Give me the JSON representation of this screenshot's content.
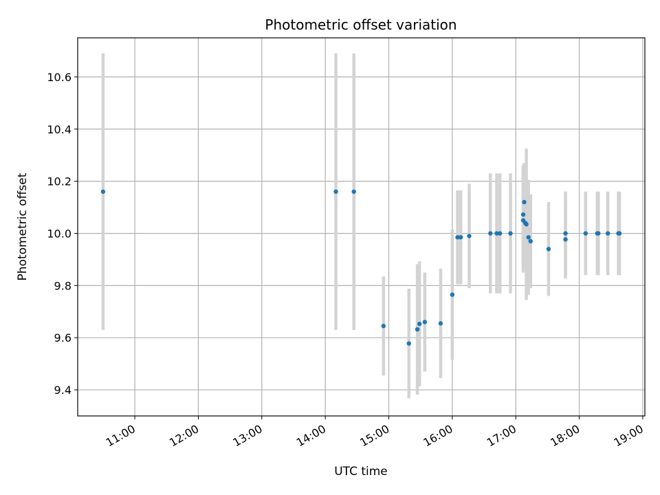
{
  "chart_data": {
    "type": "scatter",
    "title": "Photometric offset variation",
    "xlabel": "UTC time",
    "ylabel": "Photometric offset",
    "xlim": [
      "10:06",
      "19:02"
    ],
    "ylim": [
      9.3,
      10.75
    ],
    "grid": true,
    "x_ticks": [
      "11:00",
      "12:00",
      "13:00",
      "14:00",
      "15:00",
      "16:00",
      "17:00",
      "18:00",
      "19:00"
    ],
    "y_ticks": [
      "9.4",
      "9.6",
      "9.8",
      "10.0",
      "10.2",
      "10.4",
      "10.6"
    ],
    "colors": {
      "points": "#1f77b4",
      "error_bars": "#d3d3d3",
      "grid": "#b0b0b0"
    },
    "points": [
      {
        "x": "10:30",
        "y": 10.16,
        "err": 0.53
      },
      {
        "x": "14:10",
        "y": 10.16,
        "err": 0.53
      },
      {
        "x": "14:27",
        "y": 10.16,
        "err": 0.53
      },
      {
        "x": "14:55",
        "y": 9.645,
        "err": 0.19
      },
      {
        "x": "15:19",
        "y": 9.578,
        "err": 0.21
      },
      {
        "x": "15:27",
        "y": 9.632,
        "err": 0.25
      },
      {
        "x": "15:29",
        "y": 9.653,
        "err": 0.24
      },
      {
        "x": "15:34",
        "y": 9.66,
        "err": 0.19
      },
      {
        "x": "15:49",
        "y": 9.655,
        "err": 0.21
      },
      {
        "x": "16:00",
        "y": 9.765,
        "err": 0.25
      },
      {
        "x": "16:05",
        "y": 9.985,
        "err": 0.18
      },
      {
        "x": "16:08",
        "y": 9.985,
        "err": 0.18
      },
      {
        "x": "16:16",
        "y": 9.99,
        "err": 0.2
      },
      {
        "x": "16:36",
        "y": 10.0,
        "err": 0.23
      },
      {
        "x": "16:42",
        "y": 10.0,
        "err": 0.23
      },
      {
        "x": "16:45",
        "y": 10.0,
        "err": 0.23
      },
      {
        "x": "16:55",
        "y": 10.0,
        "err": 0.23
      },
      {
        "x": "17:07",
        "y": 10.05,
        "err": 0.2
      },
      {
        "x": "17:07",
        "y": 10.072,
        "err": 0.19
      },
      {
        "x": "17:08",
        "y": 10.12,
        "err": 0.15
      },
      {
        "x": "17:09",
        "y": 10.04,
        "err": 0.17
      },
      {
        "x": "17:10",
        "y": 10.035,
        "err": 0.29
      },
      {
        "x": "17:12",
        "y": 9.985,
        "err": 0.22
      },
      {
        "x": "17:14",
        "y": 9.97,
        "err": 0.18
      },
      {
        "x": "17:31",
        "y": 9.94,
        "err": 0.18
      },
      {
        "x": "17:47",
        "y": 10.0,
        "err": 0.16
      },
      {
        "x": "17:47",
        "y": 9.977,
        "err": 0.15
      },
      {
        "x": "18:06",
        "y": 10.0,
        "err": 0.16
      },
      {
        "x": "18:17",
        "y": 10.0,
        "err": 0.16
      },
      {
        "x": "18:18",
        "y": 10.0,
        "err": 0.16
      },
      {
        "x": "18:27",
        "y": 10.0,
        "err": 0.16
      },
      {
        "x": "18:37",
        "y": 10.0,
        "err": 0.16
      },
      {
        "x": "18:38",
        "y": 10.0,
        "err": 0.16
      }
    ]
  }
}
